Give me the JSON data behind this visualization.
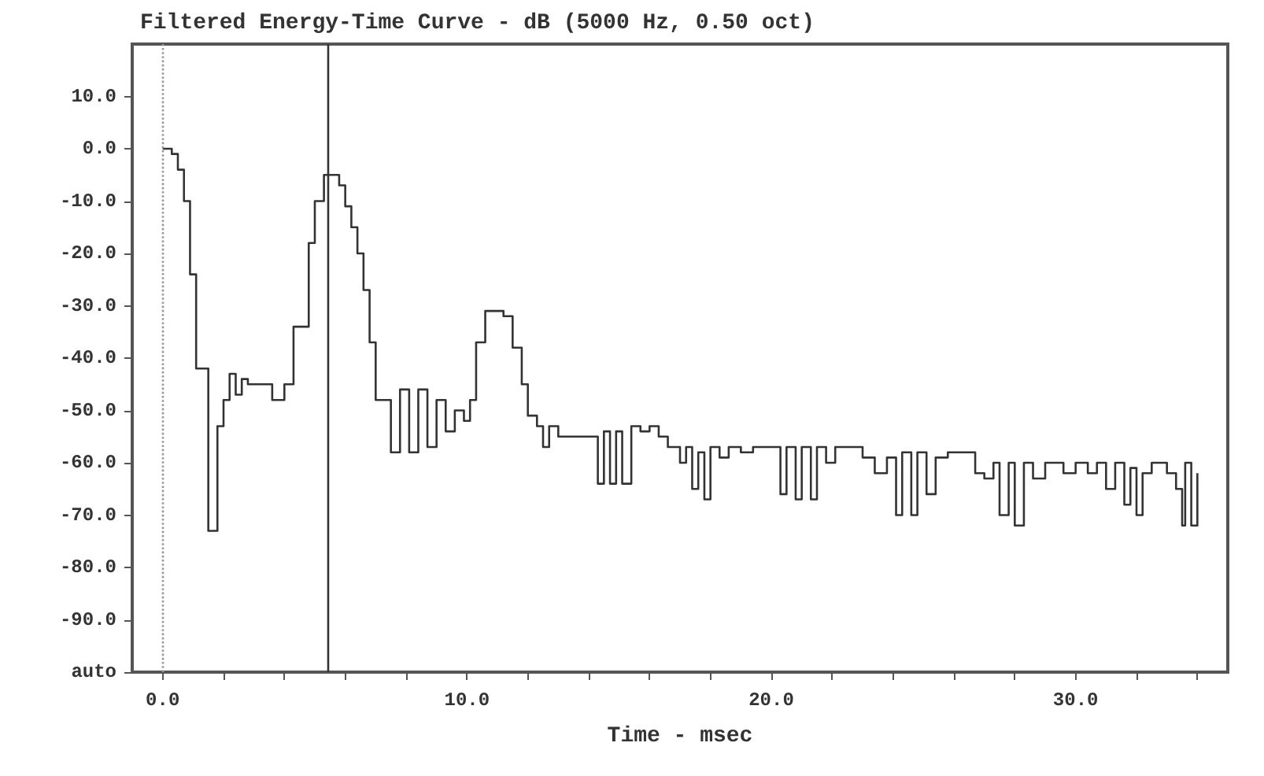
{
  "chart_data": {
    "type": "step",
    "title": "Filtered Energy-Time Curve - dB (5000 Hz, 0.50 oct)",
    "xlabel": "Time - msec",
    "xlim": [
      -1,
      35
    ],
    "xticks": [
      {
        "value": 0,
        "label": "0.0"
      },
      {
        "value": 2,
        "label": null
      },
      {
        "value": 4,
        "label": null
      },
      {
        "value": 6,
        "label": null
      },
      {
        "value": 8,
        "label": null
      },
      {
        "value": 10,
        "label": "10.0"
      },
      {
        "value": 12,
        "label": null
      },
      {
        "value": 14,
        "label": null
      },
      {
        "value": 16,
        "label": null
      },
      {
        "value": 18,
        "label": null
      },
      {
        "value": 20,
        "label": "20.0"
      },
      {
        "value": 22,
        "label": null
      },
      {
        "value": 24,
        "label": null
      },
      {
        "value": 26,
        "label": null
      },
      {
        "value": 28,
        "label": null
      },
      {
        "value": 30,
        "label": "30.0"
      },
      {
        "value": 32,
        "label": null
      },
      {
        "value": 34,
        "label": null
      }
    ],
    "ylim": [
      -100,
      20
    ],
    "yticks": [
      {
        "value": -100,
        "label": "auto"
      },
      {
        "value": -90,
        "label": "-90.0"
      },
      {
        "value": -80,
        "label": "-80.0"
      },
      {
        "value": -70,
        "label": "-70.0"
      },
      {
        "value": -60,
        "label": "-60.0"
      },
      {
        "value": -50,
        "label": "-50.0"
      },
      {
        "value": -40,
        "label": "-40.0"
      },
      {
        "value": -30,
        "label": "-30.0"
      },
      {
        "value": -20,
        "label": "-20.0"
      },
      {
        "value": -10,
        "label": "-10.0"
      },
      {
        "value": 0,
        "label": "0.0"
      },
      {
        "value": 10,
        "label": "10.0"
      }
    ],
    "grid": false,
    "marker": "none",
    "ref_lines": [
      {
        "axis": "x",
        "value": 0,
        "color": "#999999",
        "line_style": "dotted"
      },
      {
        "axis": "x",
        "value": 5.44,
        "color": "#333333",
        "line_style": "solid"
      }
    ],
    "series": [
      {
        "color": "#333333",
        "x": [
          0,
          0.3,
          0.5,
          0.7,
          0.9,
          1.1,
          1.5,
          1.8,
          2.0,
          2.2,
          2.4,
          2.6,
          2.8,
          3.2,
          3.6,
          4.0,
          4.3,
          4.8,
          5.0,
          5.3,
          5.8,
          6.0,
          6.2,
          6.4,
          6.6,
          6.8,
          7.0,
          7.5,
          7.8,
          8.1,
          8.4,
          8.7,
          9.0,
          9.3,
          9.6,
          9.9,
          10.1,
          10.3,
          10.6,
          11.2,
          11.5,
          11.8,
          12.0,
          12.3,
          12.5,
          12.7,
          13.0,
          13.5,
          13.9,
          14.3,
          14.5,
          14.7,
          14.9,
          15.1,
          15.4,
          15.7,
          16.0,
          16.3,
          16.6,
          17.0,
          17.2,
          17.4,
          17.6,
          17.8,
          18.0,
          18.3,
          18.6,
          19.0,
          19.4,
          20.0,
          20.3,
          20.5,
          20.8,
          21.0,
          21.3,
          21.5,
          21.8,
          22.1,
          22.6,
          23.0,
          23.4,
          23.8,
          24.1,
          24.3,
          24.6,
          24.8,
          25.1,
          25.4,
          25.8,
          26.4,
          26.7,
          27.0,
          27.3,
          27.5,
          27.8,
          28.0,
          28.3,
          28.6,
          29.0,
          29.6,
          30.0,
          30.4,
          30.7,
          31.0,
          31.3,
          31.6,
          31.8,
          32.0,
          32.2,
          32.5,
          33.0,
          33.3,
          33.5,
          33.6,
          33.8,
          34.0
        ],
        "values": [
          0,
          -1,
          -4,
          -10,
          -24,
          -42,
          -73,
          -53,
          -48,
          -43,
          -47,
          -44,
          -45,
          -45,
          -48,
          -45,
          -34,
          -18,
          -10,
          -5,
          -7,
          -11,
          -15,
          -20,
          -27,
          -37,
          -48,
          -58,
          -46,
          -58,
          -46,
          -57,
          -48,
          -54,
          -50,
          -52,
          -48,
          -37,
          -31,
          -32,
          -38,
          -45,
          -51,
          -53,
          -57,
          -53,
          -55,
          -55,
          -55,
          -64,
          -54,
          -64,
          -54,
          -64,
          -53,
          -54,
          -53,
          -55,
          -57,
          -60,
          -57,
          -65,
          -58,
          -67,
          -57,
          -59,
          -57,
          -58,
          -57,
          -57,
          -66,
          -57,
          -67,
          -57,
          -67,
          -57,
          -60,
          -57,
          -57,
          -59,
          -62,
          -59,
          -70,
          -58,
          -70,
          -58,
          -66,
          -59,
          -58,
          -58,
          -62,
          -63,
          -60,
          -70,
          -60,
          -72,
          -60,
          -63,
          -60,
          -62,
          -60,
          -62,
          -60,
          -65,
          -60,
          -68,
          -61,
          -70,
          -62,
          -60,
          -62,
          -65,
          -72,
          -60,
          -72,
          -62
        ]
      }
    ]
  }
}
